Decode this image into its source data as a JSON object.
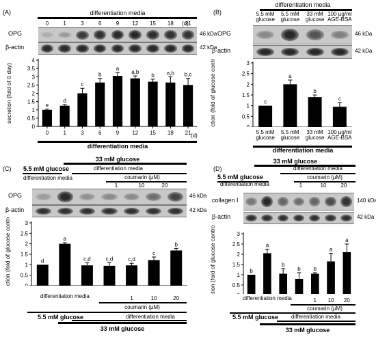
{
  "figure": {
    "panels": {
      "A": {
        "label": "(A)",
        "header": "differentiation media",
        "lanes": [
          "0",
          "1",
          "3",
          "6",
          "9",
          "12",
          "15",
          "18",
          "21"
        ],
        "unit": "(d)",
        "blot_rows": [
          {
            "label": "OPG",
            "kda": "46 kDa",
            "intensity": [
              0.1,
              0.2,
              0.75,
              0.8,
              0.85,
              0.85,
              0.82,
              0.8,
              0.78
            ]
          },
          {
            "label": "β-actin",
            "kda": "42 kDa",
            "intensity": [
              0.85,
              0.85,
              0.85,
              0.85,
              0.85,
              0.85,
              0.85,
              0.85,
              0.85
            ]
          }
        ]
      },
      "B": {
        "label": "(B)",
        "header": "differentiation media",
        "lanes": [
          "5.5 mM glucose",
          "5.5 mM glucose",
          "33 mM glucose",
          "100 μg/ml AGE-BSA"
        ],
        "blot_rows": [
          {
            "label": "OPG",
            "kda": "46 kDa",
            "intensity": [
              0.3,
              0.85,
              0.6,
              0.35
            ]
          },
          {
            "label": "β-actin",
            "kda": "42 kDa",
            "intensity": [
              0.85,
              0.85,
              0.85,
              0.85
            ]
          }
        ],
        "bottom_header": "differentiation media"
      },
      "C": {
        "label": "(C)",
        "top_header": "33 mM glucose",
        "left_group": "5.5 mM glucose",
        "diff_media_label": "differentiation media",
        "diff_header": "differentiation media",
        "coumarin_header": "coumarin (μM)",
        "coumarin_doses": [
          "1",
          "10",
          "20"
        ],
        "blot_rows": [
          {
            "label": "OPG",
            "kda": "46 kDa",
            "intensity": [
              0.2,
              0.85,
              0.25,
              0.3,
              0.3,
              0.45,
              0.7
            ]
          },
          {
            "label": "β-actin",
            "kda": "42 kDa",
            "intensity": [
              0.8,
              0.8,
              0.8,
              0.8,
              0.8,
              0.8,
              0.8
            ]
          }
        ],
        "bottom_bold_1": "5.5 mM glucose",
        "bottom_bold_2": "33 mM glucose"
      },
      "D": {
        "label": "(D)",
        "top_header": "33 mM glucose",
        "left_group": "5.5 mM glucose",
        "diff_media_label": "differentiation media",
        "diff_header": "differentiation media",
        "coumarin_header": "coumarin (μM)",
        "coumarin_doses": [
          "1",
          "10",
          "20"
        ],
        "blot_rows": [
          {
            "label": "collagen I",
            "kda": "140 kDa",
            "intensity": [
              0.4,
              0.85,
              0.5,
              0.45,
              0.5,
              0.65,
              0.8
            ]
          },
          {
            "label": "β-actin",
            "kda": "42 kDa",
            "intensity": [
              0.8,
              0.8,
              0.8,
              0.8,
              0.8,
              0.8,
              0.8
            ]
          }
        ],
        "bottom_bold_1": "5.5 mM glucose",
        "bottom_bold_2": "33 mM glucose"
      }
    }
  },
  "chart_data": [
    {
      "panel": "A",
      "type": "bar",
      "categories": [
        "0",
        "1",
        "3",
        "6",
        "9",
        "12",
        "15",
        "18",
        "21"
      ],
      "values": [
        1.0,
        1.25,
        2.0,
        2.65,
        3.05,
        2.9,
        2.7,
        2.65,
        2.5
      ],
      "errors": [
        0.05,
        0.07,
        0.3,
        0.25,
        0.2,
        0.15,
        0.15,
        0.35,
        0.4
      ],
      "significance": [
        "e",
        "d",
        "c",
        "b",
        "a",
        "a,b",
        "b",
        "a,b",
        "b,c"
      ],
      "ylabel": "secretion (fold of 0 day)",
      "xlabel": "differentiation media",
      "xunit": "(d)",
      "ylim": [
        0,
        4
      ],
      "yticks": [
        "0",
        "0.5",
        "1",
        "1.5",
        "2",
        "2.5",
        "3",
        "3.5",
        "4"
      ]
    },
    {
      "panel": "B",
      "type": "bar",
      "categories": [
        "5.5 mM glucose",
        "5.5 mM glucose",
        "33 mM glucose",
        "100 μg/ml AGE-BSA"
      ],
      "values": [
        1.0,
        2.0,
        1.4,
        0.95
      ],
      "errors": [
        0.0,
        0.2,
        0.1,
        0.2
      ],
      "significance": [
        "c",
        "a",
        "b",
        "c"
      ],
      "ylabel": "induction (fold of glucose control)",
      "ylim": [
        0,
        3
      ],
      "yticks": [
        "0",
        "0.5",
        "1",
        "1.5",
        "2",
        "2.5",
        "3"
      ]
    },
    {
      "panel": "C",
      "type": "bar",
      "categories": [
        "",
        "differentiation media",
        "",
        "",
        "1",
        "10",
        "20"
      ],
      "values": [
        1.0,
        2.0,
        0.97,
        0.95,
        0.97,
        1.22,
        1.68
      ],
      "errors": [
        0.0,
        0.05,
        0.12,
        0.15,
        0.1,
        0.15,
        0.1
      ],
      "significance": [
        "d",
        "a",
        "c,d",
        "c,d",
        "c,d",
        "c",
        "b"
      ],
      "ylabel": "induction (fold of glucose control)",
      "ylim": [
        0,
        3
      ],
      "yticks": [
        "0",
        "0.5",
        "1",
        "1.5",
        "2",
        "2.5",
        "3"
      ]
    },
    {
      "panel": "D",
      "type": "bar",
      "categories": [
        "",
        "differentiation media",
        "",
        "",
        "1",
        "10",
        "20"
      ],
      "values": [
        1.0,
        2.05,
        1.05,
        0.8,
        1.05,
        1.65,
        2.1
      ],
      "errors": [
        0.0,
        0.2,
        0.25,
        0.3,
        0.05,
        0.4,
        0.4
      ],
      "significance": [
        "b",
        "a",
        "b",
        "b",
        "b",
        "a",
        "a"
      ],
      "ylabel": "induction (fold of glucose control)",
      "ylim": [
        0,
        3
      ],
      "yticks": [
        "0",
        "0.5",
        "1",
        "1.5",
        "2",
        "2.5",
        "3"
      ]
    }
  ]
}
